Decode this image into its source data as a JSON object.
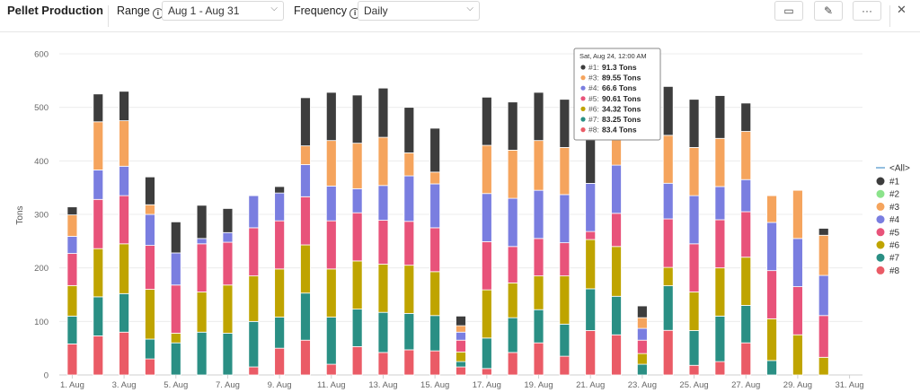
{
  "header": {
    "title": "Pellet Production",
    "range_label": "Range",
    "range_value": "Aug 1 - Aug 31",
    "frequency_label": "Frequency",
    "frequency_value": "Daily",
    "icons": [
      "info-icon",
      "chevron-down-icon",
      "comment-icon",
      "edit-icon",
      "more-icon",
      "close-icon"
    ]
  },
  "chart_data": {
    "type": "bar",
    "stacked": true,
    "ylabel": "Tons",
    "ylim": [
      0,
      600
    ],
    "yticks": [
      0,
      100,
      200,
      300,
      400,
      500,
      600
    ],
    "grid": true,
    "legend_position": "right",
    "legend_title": "<All>",
    "categories": [
      "1. Aug",
      "2. Aug",
      "3. Aug",
      "4. Aug",
      "5. Aug",
      "6. Aug",
      "7. Aug",
      "8. Aug",
      "9. Aug",
      "10. Aug",
      "11. Aug",
      "12. Aug",
      "13. Aug",
      "14. Aug",
      "15. Aug",
      "16. Aug",
      "17. Aug",
      "18. Aug",
      "19. Aug",
      "20. Aug",
      "21. Aug",
      "22. Aug",
      "23. Aug",
      "24. Aug",
      "25. Aug",
      "26. Aug",
      "27. Aug",
      "28. Aug",
      "29. Aug",
      "30. Aug",
      "31. Aug"
    ],
    "shown_tick_labels": [
      "1. Aug",
      "3. Aug",
      "5. Aug",
      "7. Aug",
      "9. Aug",
      "11. Aug",
      "13. Aug",
      "15. Aug",
      "17. Aug",
      "19. Aug",
      "21. Aug",
      "23. Aug",
      "25. Aug",
      "27. Aug",
      "29. Aug",
      "31. Aug"
    ],
    "series": [
      {
        "name": "#8",
        "color": "#ea5b66",
        "values": [
          58,
          73,
          80,
          30,
          0,
          0,
          0,
          15,
          50,
          65,
          20,
          53,
          42,
          47,
          45,
          15,
          12,
          42,
          60,
          35,
          83,
          75,
          0,
          83.4,
          18,
          25,
          60,
          0,
          0,
          0,
          0
        ]
      },
      {
        "name": "#7",
        "color": "#2a8f84",
        "values": [
          52,
          73,
          72,
          37,
          60,
          80,
          78,
          85,
          58,
          88,
          88,
          70,
          75,
          68,
          66,
          10,
          57,
          65,
          62,
          60,
          78,
          72,
          20,
          83.25,
          65,
          85,
          70,
          27,
          0,
          0,
          0
        ]
      },
      {
        "name": "#6",
        "color": "#bfa400",
        "values": [
          57,
          90,
          93,
          93,
          18,
          75,
          90,
          85,
          90,
          90,
          90,
          90,
          90,
          90,
          82,
          18,
          90,
          65,
          63,
          90,
          92,
          93,
          20,
          34.32,
          72,
          90,
          90,
          78,
          75,
          33,
          0
        ]
      },
      {
        "name": "#5",
        "color": "#e8537a",
        "values": [
          60,
          92,
          90,
          82,
          90,
          90,
          80,
          90,
          90,
          90,
          90,
          90,
          82,
          82,
          82,
          22,
          90,
          68,
          70,
          62,
          15,
          62,
          25,
          90.61,
          90,
          90,
          85,
          90,
          90,
          78,
          0
        ]
      },
      {
        "name": "#4",
        "color": "#7a7ee0",
        "values": [
          32,
          55,
          55,
          58,
          60,
          10,
          18,
          60,
          52,
          60,
          65,
          45,
          65,
          85,
          82,
          15,
          90,
          90,
          90,
          90,
          90,
          90,
          22,
          66.6,
          90,
          62,
          60,
          90,
          90,
          75,
          0
        ]
      },
      {
        "name": "#3",
        "color": "#f5a45d",
        "values": [
          40,
          90,
          85,
          18,
          0,
          0,
          0,
          0,
          0,
          35,
          85,
          85,
          90,
          43,
          22,
          12,
          90,
          90,
          93,
          88,
          0,
          90,
          20,
          89.55,
          90,
          90,
          90,
          50,
          90,
          75,
          0
        ]
      },
      {
        "name": "#2",
        "color": "#8be38b",
        "values": [
          0,
          0,
          0,
          0,
          0,
          0,
          0,
          0,
          0,
          0,
          0,
          0,
          0,
          0,
          0,
          0,
          0,
          0,
          0,
          0,
          0,
          0,
          0,
          0,
          0,
          0,
          0,
          0,
          0,
          0,
          0
        ]
      },
      {
        "name": "#1",
        "color": "#3d3d3d",
        "values": [
          15,
          52,
          55,
          52,
          58,
          62,
          45,
          0,
          12,
          90,
          90,
          90,
          92,
          85,
          82,
          18,
          90,
          90,
          90,
          90,
          90,
          90,
          22,
          91.3,
          90,
          80,
          53,
          0,
          0,
          13,
          0
        ]
      }
    ],
    "tooltip": {
      "title": "Sat, Aug 24, 12:00 AM",
      "category_index": 23,
      "rows": [
        {
          "key": "#1",
          "value": "91.3 Tons",
          "color": "#3d3d3d"
        },
        {
          "key": "#3",
          "value": "89.55 Tons",
          "color": "#f5a45d"
        },
        {
          "key": "#4",
          "value": "66.6 Tons",
          "color": "#7a7ee0"
        },
        {
          "key": "#5",
          "value": "90.61 Tons",
          "color": "#e8537a"
        },
        {
          "key": "#6",
          "value": "34.32 Tons",
          "color": "#bfa400"
        },
        {
          "key": "#7",
          "value": "83.25 Tons",
          "color": "#2a8f84"
        },
        {
          "key": "#8",
          "value": "83.4 Tons",
          "color": "#ea5b66"
        }
      ]
    },
    "legend_items": [
      {
        "name": "#1",
        "color": "#3d3d3d"
      },
      {
        "name": "#2",
        "color": "#8be38b"
      },
      {
        "name": "#3",
        "color": "#f5a45d"
      },
      {
        "name": "#4",
        "color": "#7a7ee0"
      },
      {
        "name": "#5",
        "color": "#e8537a"
      },
      {
        "name": "#6",
        "color": "#bfa400"
      },
      {
        "name": "#7",
        "color": "#2a8f84"
      },
      {
        "name": "#8",
        "color": "#ea5b66"
      }
    ]
  }
}
